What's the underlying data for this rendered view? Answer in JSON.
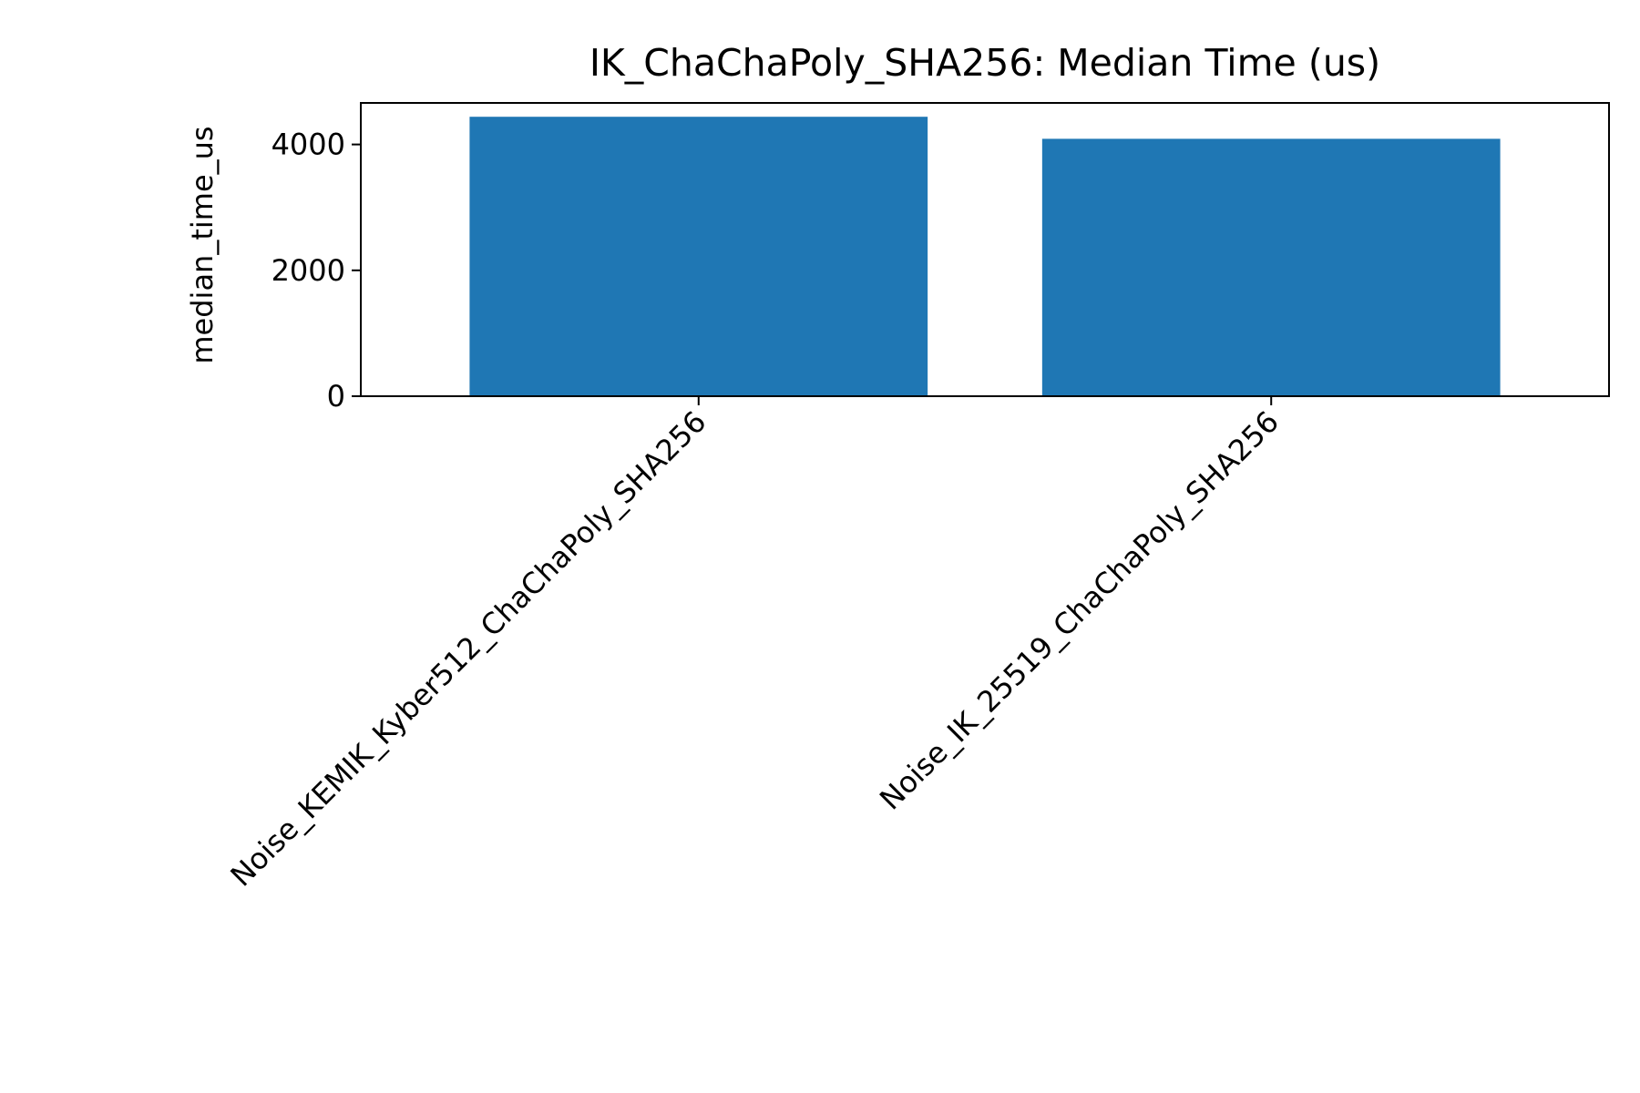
{
  "chart_data": {
    "type": "bar",
    "title": "IK_ChaChaPoly_SHA256: Median Time (us)",
    "xlabel": "",
    "ylabel": "median_time_us",
    "categories": [
      "Noise_KEMIK_Kyber512_ChaChaPoly_SHA256",
      "Noise_IK_25519_ChaChaPoly_SHA256"
    ],
    "values": [
      4440,
      4090
    ],
    "ylim": [
      0,
      4660
    ],
    "yticks": [
      0,
      2000,
      4000
    ],
    "bar_color": "#1f77b4",
    "grid": false,
    "legend": "none"
  }
}
